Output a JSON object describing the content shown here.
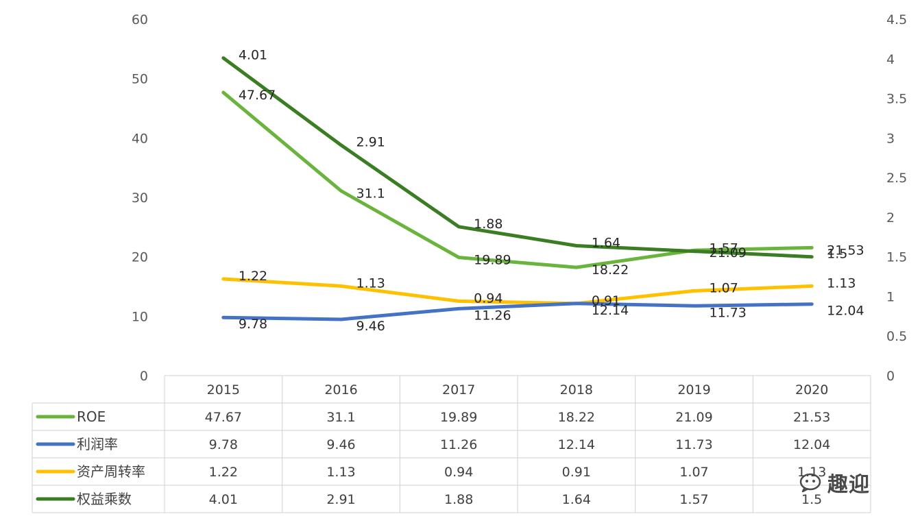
{
  "chart_data": {
    "type": "line",
    "categories": [
      "2015",
      "2016",
      "2017",
      "2018",
      "2019",
      "2020"
    ],
    "left_axis": {
      "min": 0,
      "max": 60,
      "step": 10,
      "ticks": [
        "0",
        "10",
        "20",
        "30",
        "40",
        "50",
        "60"
      ]
    },
    "right_axis": {
      "min": 0,
      "max": 4.5,
      "step": 0.5,
      "ticks": [
        "0",
        "0.5",
        "1",
        "1.5",
        "2",
        "2.5",
        "3",
        "3.5",
        "4",
        "4.5"
      ]
    },
    "series": [
      {
        "name": "ROE",
        "axis": "left",
        "color": "#6ab43e",
        "values": [
          47.67,
          31.1,
          19.89,
          18.22,
          21.09,
          21.53
        ],
        "labels": [
          "47.67",
          "31.1",
          "19.89",
          "18.22",
          "21.09",
          "21.53"
        ]
      },
      {
        "name": "利润率",
        "axis": "left",
        "color": "#4472c4",
        "values": [
          9.78,
          9.46,
          11.26,
          12.14,
          11.73,
          12.04
        ],
        "labels": [
          "9.78",
          "9.46",
          "11.26",
          "12.14",
          "11.73",
          "12.04"
        ]
      },
      {
        "name": "资产周转率",
        "axis": "right",
        "color": "#ffc000",
        "values": [
          1.22,
          1.13,
          0.94,
          0.91,
          1.07,
          1.13
        ],
        "labels": [
          "1.22",
          "1.13",
          "0.94",
          "0.91",
          "1.07",
          "1.13"
        ]
      },
      {
        "name": "权益乘数",
        "axis": "right",
        "color": "#3a7d22",
        "values": [
          4.01,
          2.91,
          1.88,
          1.64,
          1.57,
          1.5
        ],
        "labels": [
          "4.01",
          "2.91",
          "1.88",
          "1.64",
          "1.57",
          "1.5"
        ]
      }
    ],
    "data_table": true,
    "grid": false
  },
  "watermark": {
    "text": "趣迎"
  }
}
